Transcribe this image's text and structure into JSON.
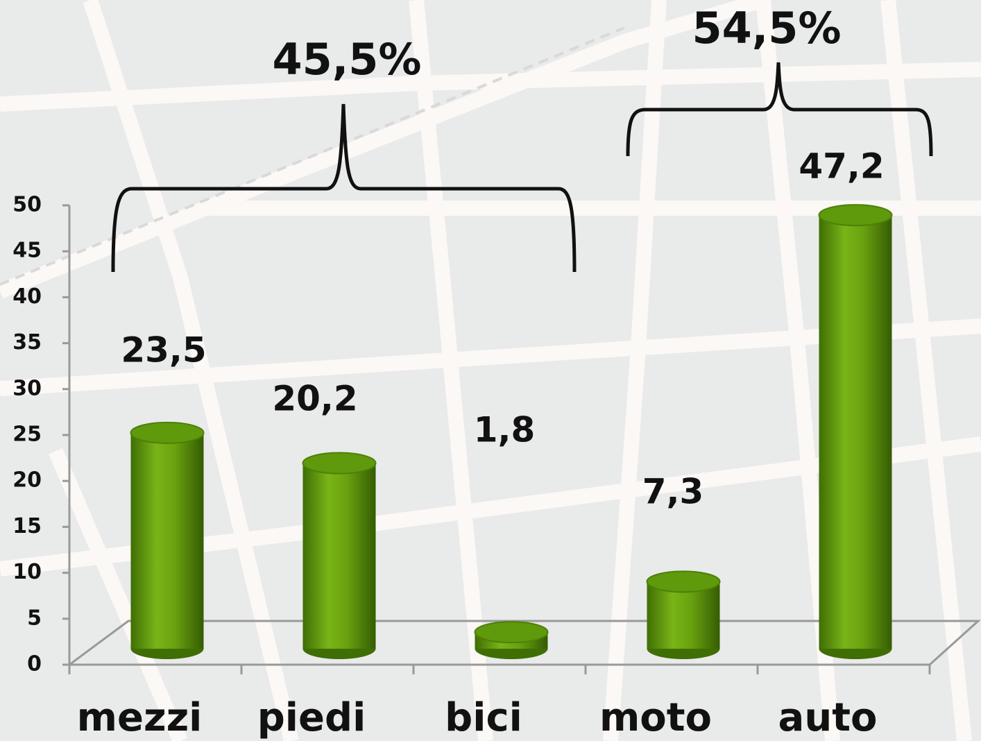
{
  "chart_data": {
    "type": "bar",
    "categories": [
      "mezzi",
      "piedi",
      "bici",
      "moto",
      "auto"
    ],
    "values": [
      23.5,
      20.2,
      1.8,
      7.3,
      47.2
    ],
    "value_labels": [
      "23,5",
      "20,2",
      "1,8",
      "7,3",
      "47,2"
    ],
    "color": "#5e9a0c",
    "ylim": [
      0,
      50
    ],
    "yticks": [
      0,
      5,
      10,
      15,
      20,
      25,
      30,
      35,
      40,
      45,
      50
    ],
    "annotations": [
      "45,5%",
      "54,5%"
    ]
  }
}
